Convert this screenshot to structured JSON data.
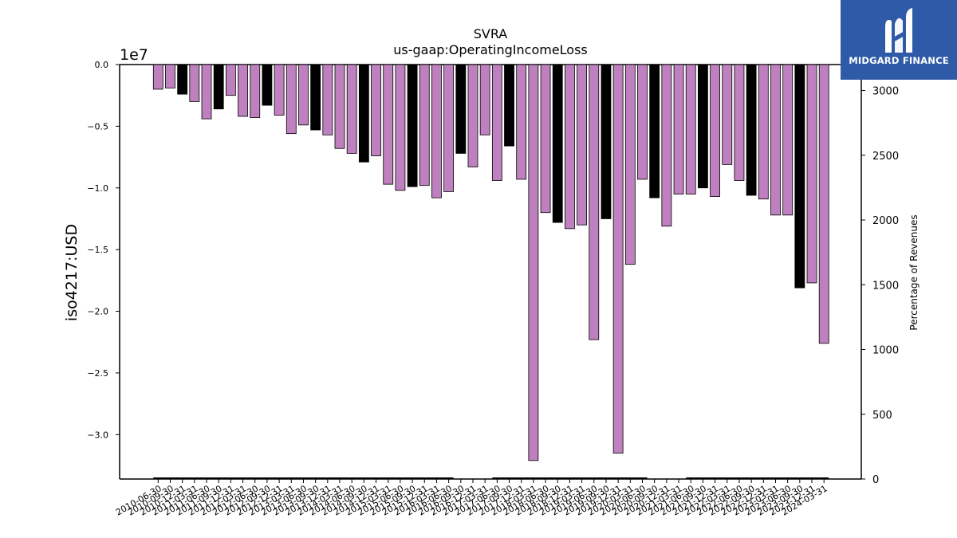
{
  "chart_data": {
    "type": "bar",
    "title": "SVRA",
    "subtitle": "us-gaap:OperatingIncomeLoss",
    "ylabel": "iso4217:USD",
    "y_offset_label": "1e7",
    "y2label": "Percentage of Revenues",
    "ylim": [
      -33600000,
      0
    ],
    "y2lim": [
      0,
      3200
    ],
    "y_ticks": [
      "0.0",
      "−0.5",
      "−1.0",
      "−1.5",
      "−2.0",
      "−2.5",
      "−3.0"
    ],
    "y_tick_values": [
      0,
      -5000000,
      -10000000,
      -15000000,
      -20000000,
      -25000000,
      -30000000
    ],
    "y2_ticks": [
      "0",
      "500",
      "1000",
      "1500",
      "2000",
      "2500",
      "3000"
    ],
    "y2_tick_values": [
      0,
      500,
      1000,
      1500,
      2000,
      2500,
      3000
    ],
    "categories": [
      "2010-06-30",
      "2010-09-30",
      "2010-12-31",
      "2011-03-31",
      "2011-06-30",
      "2011-09-30",
      "2011-12-31",
      "2012-03-31",
      "2012-06-30",
      "2012-09-30",
      "2012-12-31",
      "2013-03-31",
      "2013-06-30",
      "2013-09-30",
      "2013-12-31",
      "2014-03-31",
      "2014-06-30",
      "2014-09-30",
      "2014-12-31",
      "2015-03-31",
      "2015-06-30",
      "2015-09-30",
      "2015-12-31",
      "2016-03-31",
      "2016-06-30",
      "2016-09-30",
      "2016-12-31",
      "2017-03-31",
      "2017-06-30",
      "2017-09-30",
      "2017-12-31",
      "2018-03-31",
      "2018-06-30",
      "2018-09-30",
      "2018-12-31",
      "2019-03-31",
      "2019-06-30",
      "2019-09-30",
      "2019-12-31",
      "2020-03-31",
      "2020-06-30",
      "2020-09-30",
      "2020-12-31",
      "2021-03-31",
      "2021-06-30",
      "2021-09-30",
      "2021-12-31",
      "2022-03-31",
      "2022-06-30",
      "2022-09-30",
      "2022-12-31",
      "2023-03-31",
      "2023-06-30",
      "2023-09-30",
      "2023-12-31",
      "2024-03-31"
    ],
    "values": [
      -2000000,
      -1900000,
      -2400000,
      -3000000,
      -4400000,
      -3600000,
      -2500000,
      -4200000,
      -4300000,
      -3300000,
      -4100000,
      -5600000,
      -4900000,
      -5300000,
      -5700000,
      -6800000,
      -7200000,
      -7900000,
      -7400000,
      -9700000,
      -10200000,
      -9900000,
      -9800000,
      -10800000,
      -10300000,
      -7200000,
      -8300000,
      -5700000,
      -9400000,
      -6600000,
      -9300000,
      -32100000,
      -12000000,
      -12800000,
      -13300000,
      -13000000,
      -22300000,
      -12500000,
      -31500000,
      -16200000,
      -9300000,
      -10800000,
      -13100000,
      -10500000,
      -10500000,
      -10000000,
      -10700000,
      -8100000,
      -9400000,
      -10600000,
      -10900000,
      -12200000,
      -12200000,
      -18100000,
      -17700000,
      -22600000
    ],
    "annual": [
      false,
      false,
      true,
      false,
      false,
      true,
      false,
      false,
      false,
      true,
      false,
      false,
      false,
      true,
      false,
      false,
      false,
      true,
      false,
      false,
      false,
      true,
      false,
      false,
      false,
      true,
      false,
      false,
      false,
      true,
      false,
      false,
      false,
      true,
      false,
      false,
      false,
      true,
      false,
      false,
      false,
      true,
      false,
      false,
      false,
      true,
      false,
      false,
      false,
      true,
      false,
      false,
      false,
      true,
      false,
      false
    ],
    "colors": {
      "quarterly": "#bf80bf",
      "annual": "#000000",
      "edge": "#000000"
    },
    "legend": "none",
    "grid": false
  },
  "logo": {
    "text": "MIDGARD FINANCE"
  }
}
